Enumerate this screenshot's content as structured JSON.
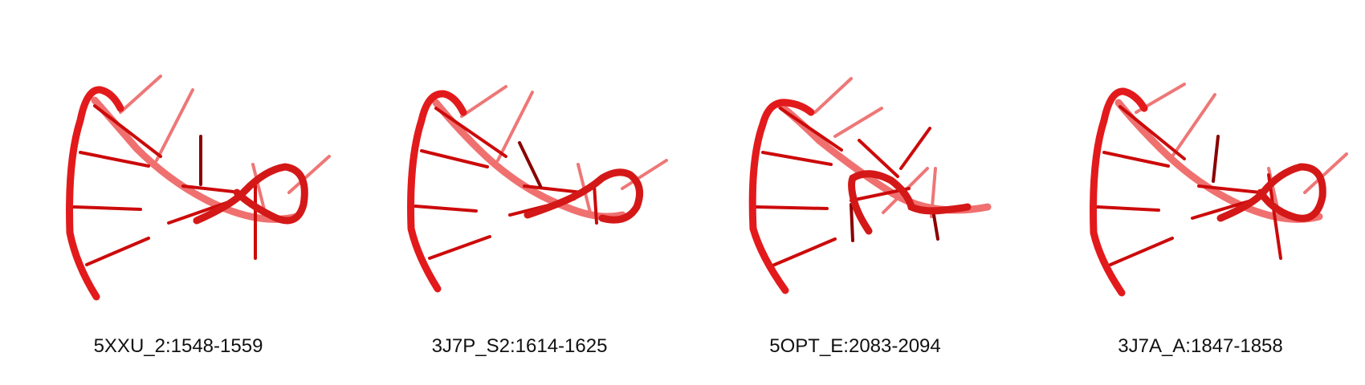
{
  "panels": [
    {
      "label": "5XXU_2:1548-1559",
      "variant": "a"
    },
    {
      "label": "3J7P_S2:1614-1625",
      "variant": "b"
    },
    {
      "label": "5OPT_E:2083-2094",
      "variant": "c"
    },
    {
      "label": "3J7A_A:1847-1858",
      "variant": "a"
    }
  ],
  "colors": {
    "backbone": "#e31a1c",
    "backbone_far": "#f07070",
    "base": "#cc0a0a",
    "base_far": "#ee7777",
    "base_dark": "#8a0000"
  }
}
